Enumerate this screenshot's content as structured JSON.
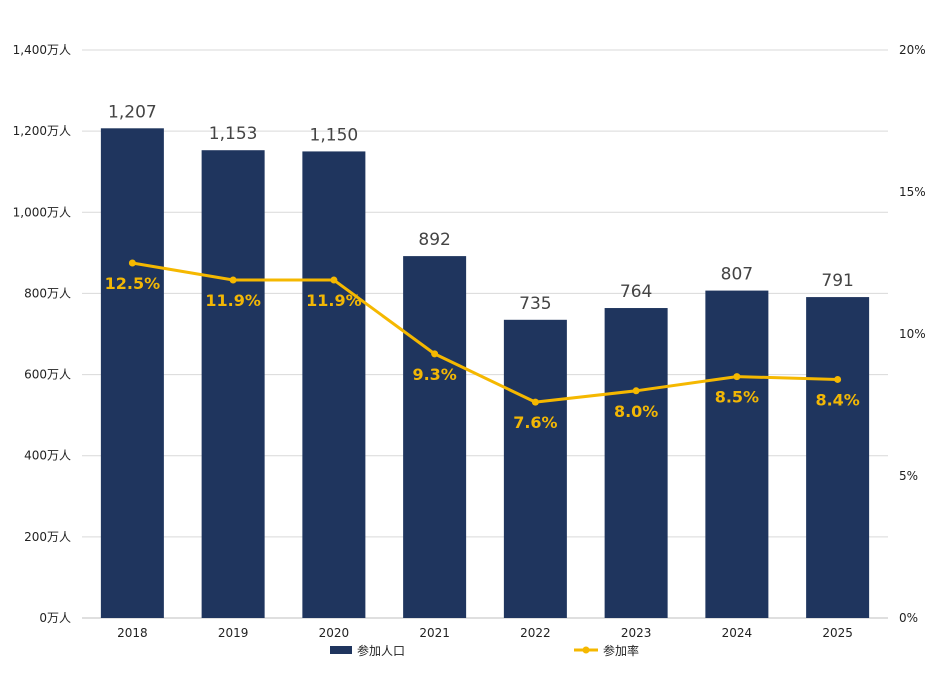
{
  "colors": {
    "bar": "#1f355e",
    "line": "#f5b800",
    "rate_label": "#f2b705",
    "grid": "#d9d9d9"
  },
  "chart_data": {
    "type": "bar",
    "categories": [
      "2018",
      "2019",
      "2020",
      "2021",
      "2022",
      "2023",
      "2024",
      "2025"
    ],
    "series": [
      {
        "name": "参加人口",
        "type": "bar",
        "axis": "left",
        "values": [
          1207,
          1153,
          1150,
          892,
          735,
          764,
          807,
          791
        ],
        "data_labels": [
          "1,207",
          "1,153",
          "1,150",
          "892",
          "735",
          "764",
          "807",
          "791"
        ]
      },
      {
        "name": "参加率",
        "type": "line",
        "axis": "right",
        "values": [
          12.5,
          11.9,
          11.9,
          9.3,
          7.6,
          8.0,
          8.5,
          8.4
        ],
        "data_labels": [
          "12.5%",
          "11.9%",
          "11.9%",
          "9.3%",
          "7.6%",
          "8.0%",
          "8.5%",
          "8.4%"
        ]
      }
    ],
    "y_left": {
      "ylim": [
        0,
        1400
      ],
      "ticks": [
        0,
        200,
        400,
        600,
        800,
        1000,
        1200,
        1400
      ],
      "tick_labels": [
        "0万人",
        "200万人",
        "400万人",
        "600万人",
        "800万人",
        "1,000万人",
        "1,200万人",
        "1,400万人"
      ]
    },
    "y_right": {
      "ylim": [
        0,
        20
      ],
      "ticks": [
        0,
        5,
        10,
        15,
        20
      ],
      "tick_labels": [
        "0%",
        "5%",
        "10%",
        "15%",
        "20%"
      ]
    },
    "grid": true,
    "legend": {
      "position": "bottom",
      "entries": [
        "参加人口",
        "参加率"
      ]
    }
  }
}
